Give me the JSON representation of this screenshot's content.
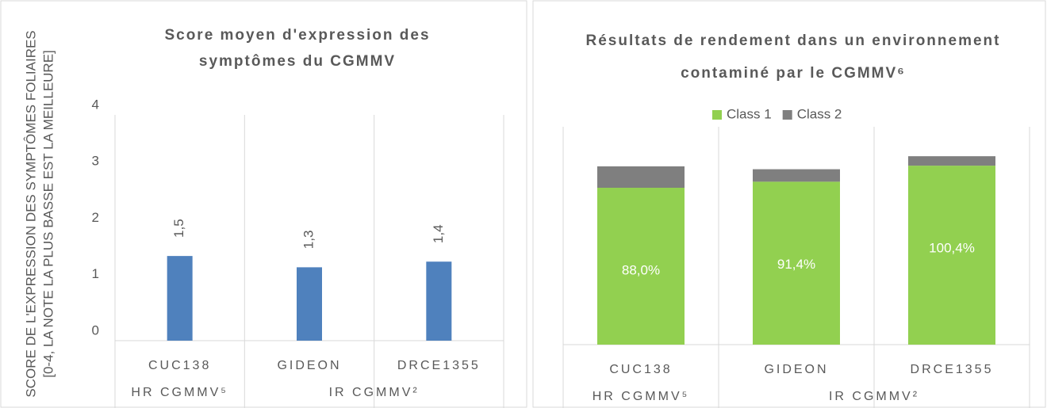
{
  "chart_data": [
    {
      "type": "bar",
      "title": [
        "Score moyen d'expression des",
        "symptômes du CGMMV"
      ],
      "ylabel": [
        "SCORE DE L'EXPRESSION DES SYMPTÔMES FOLIAIRES",
        "[0-4, LA NOTE LA PLUS BASSE EST LA MEILLEURE]"
      ],
      "categories": [
        "CUC138",
        "GIDEON",
        "DRCE1355"
      ],
      "groups": [
        {
          "label": "HR CGMMV⁵",
          "span": 1
        },
        {
          "label": "IR CGMMV²",
          "span": 2
        }
      ],
      "values": [
        1.5,
        1.3,
        1.4
      ],
      "value_labels": [
        "1,5",
        "1,3",
        "1,4"
      ],
      "color": "#4f81bd",
      "ylim": [
        0,
        4
      ],
      "yticks": [
        0,
        1,
        2,
        3,
        4
      ]
    },
    {
      "type": "stacked_bar",
      "title": [
        "Résultats de rendement dans un environnement",
        "contaminé par le CGMMV⁶"
      ],
      "categories": [
        "CUC138",
        "GIDEON",
        "DRCE1355"
      ],
      "groups": [
        {
          "label": "HR CGMMV⁵",
          "span": 1
        },
        {
          "label": "IR CGMMV²",
          "span": 2
        }
      ],
      "series": [
        {
          "name": "Class 1",
          "color": "#92d050",
          "values": [
            88.0,
            91.4,
            100.4
          ],
          "value_labels": [
            "88,0%",
            "91,4%",
            "100,4%"
          ]
        },
        {
          "name": "Class 2",
          "color": "#7f7f7f",
          "values": [
            12,
            7,
            5.3
          ]
        }
      ],
      "legend": "top"
    }
  ]
}
